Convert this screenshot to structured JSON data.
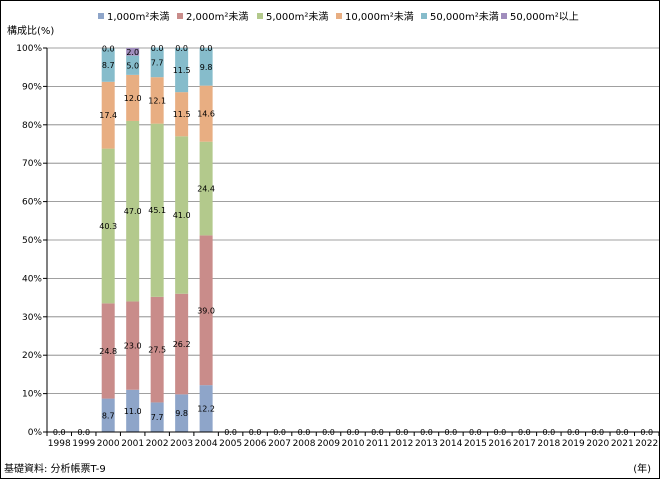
{
  "chart_data": {
    "type": "bar",
    "stacked": true,
    "ylabel": "構成比(%)",
    "xlabel": "(年)",
    "source": "基礎資料: 分析帳票T-9",
    "ylim": [
      0,
      100
    ],
    "yticks": [
      "0%",
      "10%",
      "20%",
      "30%",
      "40%",
      "50%",
      "60%",
      "70%",
      "80%",
      "90%",
      "100%"
    ],
    "grid": true,
    "legend": "top",
    "categories": [
      "1998",
      "1999",
      "2000",
      "2001",
      "2002",
      "2003",
      "2004",
      "2005",
      "2006",
      "2007",
      "2008",
      "2009",
      "2010",
      "2011",
      "2012",
      "2013",
      "2014",
      "2015",
      "2016",
      "2017",
      "2018",
      "2019",
      "2020",
      "2021",
      "2022"
    ],
    "series": [
      {
        "name": "1,000m²未満",
        "color": "#8ea5c9",
        "values": [
          0,
          0,
          8.7,
          11.0,
          7.7,
          9.8,
          12.2,
          0,
          0,
          0,
          0,
          0,
          0,
          0,
          0,
          0,
          0,
          0,
          0,
          0,
          0,
          0,
          0,
          0,
          0
        ]
      },
      {
        "name": "2,000m²未満",
        "color": "#c98c8a",
        "values": [
          0,
          0,
          24.8,
          23.0,
          27.5,
          26.2,
          39.0,
          0,
          0,
          0,
          0,
          0,
          0,
          0,
          0,
          0,
          0,
          0,
          0,
          0,
          0,
          0,
          0,
          0,
          0
        ]
      },
      {
        "name": "5,000m²未満",
        "color": "#b3c98c",
        "values": [
          0,
          0,
          40.3,
          47.0,
          45.1,
          41.0,
          24.4,
          0,
          0,
          0,
          0,
          0,
          0,
          0,
          0,
          0,
          0,
          0,
          0,
          0,
          0,
          0,
          0,
          0,
          0
        ]
      },
      {
        "name": "10,000m²未満",
        "color": "#e8ae82",
        "values": [
          0,
          0,
          17.4,
          12.0,
          12.1,
          11.5,
          14.6,
          0,
          0,
          0,
          0,
          0,
          0,
          0,
          0,
          0,
          0,
          0,
          0,
          0,
          0,
          0,
          0,
          0,
          0
        ]
      },
      {
        "name": "50,000m²未満",
        "color": "#86bccb",
        "values": [
          0,
          0,
          8.7,
          5.0,
          7.7,
          11.5,
          9.8,
          0,
          0,
          0,
          0,
          0,
          0,
          0,
          0,
          0,
          0,
          0,
          0,
          0,
          0,
          0,
          0,
          0,
          0
        ]
      },
      {
        "name": "50,000m²以上",
        "color": "#a08dbd",
        "values": [
          0,
          0,
          0.0,
          2.0,
          0.0,
          0.0,
          0.0,
          0,
          0,
          0,
          0,
          0,
          0,
          0,
          0,
          0,
          0,
          0,
          0,
          0,
          0,
          0,
          0,
          0,
          0
        ]
      }
    ],
    "data_labels": [
      {
        "category": "1998",
        "series": 0,
        "text": "0.0"
      },
      {
        "category": "1999",
        "series": 0,
        "text": "0.0"
      },
      {
        "category": "2000",
        "series": 0,
        "text": "8.7"
      },
      {
        "category": "2000",
        "series": 1,
        "text": "24.8"
      },
      {
        "category": "2000",
        "series": 2,
        "text": "40.3"
      },
      {
        "category": "2000",
        "series": 3,
        "text": "17.4"
      },
      {
        "category": "2000",
        "series": 4,
        "text": "8.7"
      },
      {
        "category": "2000",
        "series": 5,
        "text": "0.0"
      },
      {
        "category": "2001",
        "series": 0,
        "text": "11.0"
      },
      {
        "category": "2001",
        "series": 1,
        "text": "23.0"
      },
      {
        "category": "2001",
        "series": 2,
        "text": "47.0"
      },
      {
        "category": "2001",
        "series": 3,
        "text": "12.0"
      },
      {
        "category": "2001",
        "series": 4,
        "text": "5.0"
      },
      {
        "category": "2001",
        "series": 5,
        "text": "2.0"
      },
      {
        "category": "2002",
        "series": 0,
        "text": "7.7"
      },
      {
        "category": "2002",
        "series": 1,
        "text": "27.5"
      },
      {
        "category": "2002",
        "series": 2,
        "text": "45.1"
      },
      {
        "category": "2002",
        "series": 3,
        "text": "12.1"
      },
      {
        "category": "2002",
        "series": 4,
        "text": "7.7"
      },
      {
        "category": "2002",
        "series": 5,
        "text": "0.0"
      },
      {
        "category": "2003",
        "series": 0,
        "text": "9.8"
      },
      {
        "category": "2003",
        "series": 1,
        "text": "26.2"
      },
      {
        "category": "2003",
        "series": 2,
        "text": "41.0"
      },
      {
        "category": "2003",
        "series": 3,
        "text": "11.5"
      },
      {
        "category": "2003",
        "series": 4,
        "text": "11.5"
      },
      {
        "category": "2003",
        "series": 5,
        "text": "0.0"
      },
      {
        "category": "2004",
        "series": 0,
        "text": "12.2"
      },
      {
        "category": "2004",
        "series": 1,
        "text": "39.0"
      },
      {
        "category": "2004",
        "series": 2,
        "text": "24.4"
      },
      {
        "category": "2004",
        "series": 3,
        "text": "14.6"
      },
      {
        "category": "2004",
        "series": 4,
        "text": "9.8"
      },
      {
        "category": "2004",
        "series": 5,
        "text": "0.0"
      },
      {
        "category": "2005",
        "series": 0,
        "text": "0.0"
      },
      {
        "category": "2006",
        "series": 0,
        "text": "0.0"
      },
      {
        "category": "2007",
        "series": 0,
        "text": "0.0"
      },
      {
        "category": "2008",
        "series": 0,
        "text": "0.0"
      },
      {
        "category": "2009",
        "series": 0,
        "text": "0.0"
      },
      {
        "category": "2010",
        "series": 0,
        "text": "0.0"
      },
      {
        "category": "2011",
        "series": 0,
        "text": "0.0"
      },
      {
        "category": "2012",
        "series": 0,
        "text": "0.0"
      },
      {
        "category": "2013",
        "series": 0,
        "text": "0.0"
      },
      {
        "category": "2014",
        "series": 0,
        "text": "0.0"
      },
      {
        "category": "2015",
        "series": 0,
        "text": "0.0"
      },
      {
        "category": "2016",
        "series": 0,
        "text": "0.0"
      },
      {
        "category": "2017",
        "series": 0,
        "text": "0.0"
      },
      {
        "category": "2018",
        "series": 0,
        "text": "0.0"
      },
      {
        "category": "2019",
        "series": 0,
        "text": "0.0"
      },
      {
        "category": "2020",
        "series": 0,
        "text": "0.0"
      },
      {
        "category": "2021",
        "series": 0,
        "text": "0.0"
      },
      {
        "category": "2022",
        "series": 0,
        "text": "0.0"
      }
    ]
  }
}
